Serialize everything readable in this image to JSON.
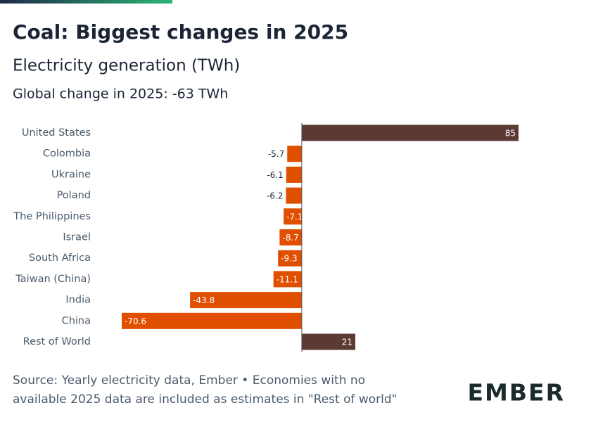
{
  "chart_data": {
    "type": "hbar",
    "title": "Coal: Biggest changes in 2025",
    "subtitle": "Electricity generation (TWh)",
    "summary": "Global change in 2025: -63 TWh",
    "categories": [
      "United States",
      "Colombia",
      "Ukraine",
      "Poland",
      "The Philippines",
      "Israel",
      "South Africa",
      "Taiwan (China)",
      "India",
      "China",
      "Rest of World"
    ],
    "values": [
      85,
      -5.7,
      -6.1,
      -6.2,
      -7.1,
      -8.7,
      -9.3,
      -11.1,
      -43.8,
      -70.6,
      21
    ],
    "positive_color": "#5b3a34",
    "negative_color": "#e04f00",
    "notes": [
      "Source: Yearly electricity data, Ember • Economies with no",
      "available 2025 data are included as estimates in \"Rest of world\""
    ],
    "logo": "EMBER"
  }
}
